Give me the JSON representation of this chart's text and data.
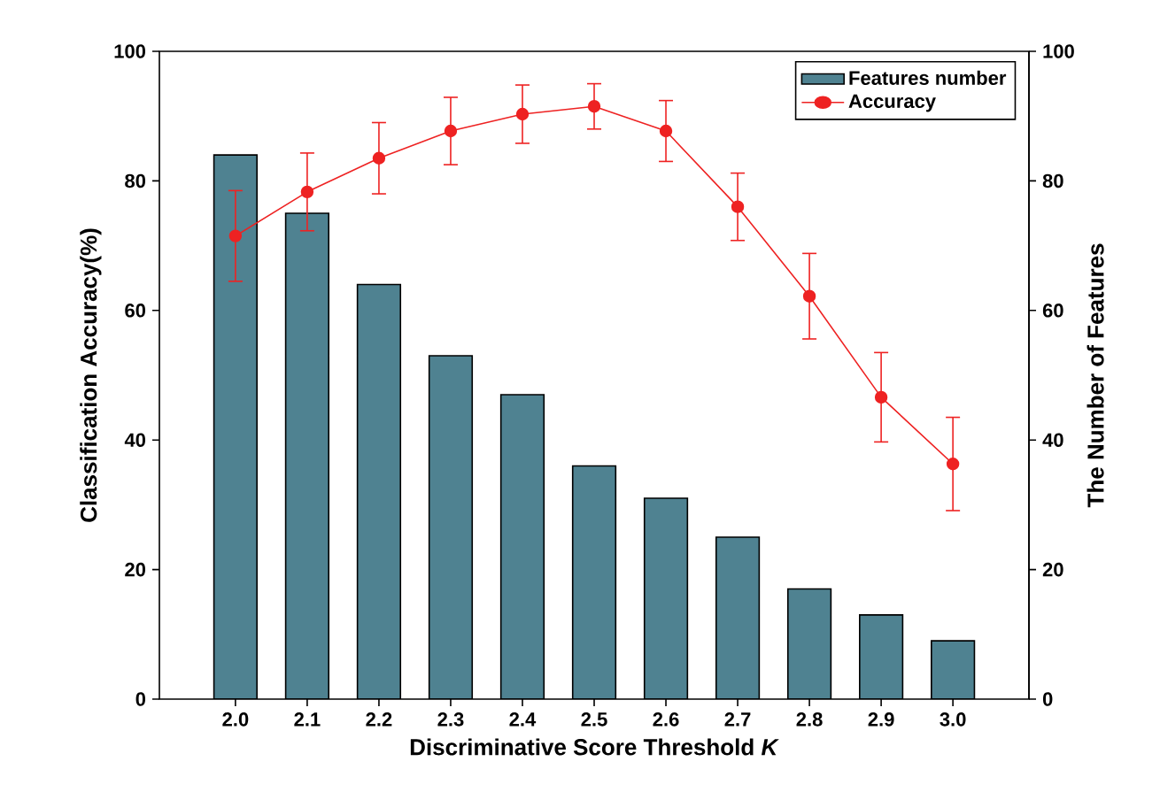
{
  "chart_data": {
    "type": "bar",
    "xlabel": "Discriminative Score Threshold *K*",
    "ylabel": "Classification Accuracy(%)",
    "y2label": "The Number of  Features",
    "categories": [
      "2.0",
      "2.1",
      "2.2",
      "2.3",
      "2.4",
      "2.5",
      "2.6",
      "2.7",
      "2.8",
      "2.9",
      "3.0"
    ],
    "series": [
      {
        "name": "Features number",
        "axis": "y2",
        "color": "#4f8291",
        "values": [
          84,
          75,
          64,
          53,
          47,
          36,
          31,
          25,
          17,
          13,
          9
        ]
      },
      {
        "name": "Accuracy",
        "type": "line",
        "color": "#ee2222",
        "marker": "circle",
        "line_style": "solid",
        "values": [
          71.5,
          78.3,
          83.5,
          87.7,
          90.3,
          91.5,
          87.7,
          76,
          62.2,
          46.6,
          36.3
        ],
        "errors": [
          7,
          6,
          5.5,
          5.2,
          4.5,
          3.5,
          4.7,
          5.2,
          6.6,
          6.9,
          7.2
        ]
      }
    ],
    "ylim": [
      0,
      100
    ],
    "yticks": [
      0,
      20,
      40,
      60,
      80,
      100
    ],
    "y2lim": [
      0,
      100
    ],
    "y2ticks": [
      0,
      20,
      40,
      60,
      80,
      100
    ],
    "grid": false,
    "legend": "top right"
  }
}
